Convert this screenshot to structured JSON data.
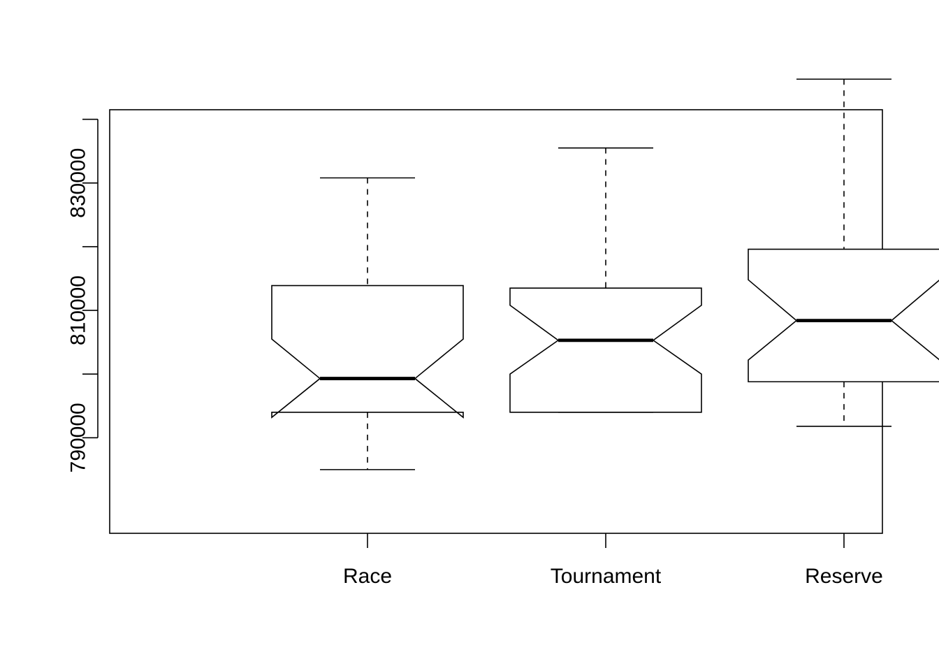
{
  "chart_data": {
    "type": "boxplot",
    "notched": true,
    "title": "",
    "xlabel": "",
    "ylabel": "",
    "categories": [
      "Race",
      "Tournament",
      "Reserve"
    ],
    "ylim": [
      775000,
      841500
    ],
    "y_ticks": [
      790000,
      800000,
      810000,
      820000,
      830000,
      840000
    ],
    "y_tick_labels": [
      "790000",
      "",
      "810000",
      "",
      "830000",
      ""
    ],
    "boxes": [
      {
        "label": "Race",
        "whisker_low": 785000,
        "q1": 794000,
        "median": 799300,
        "q3": 813900,
        "whisker_high": 830800,
        "notch_low": 793200,
        "notch_high": 805500
      },
      {
        "label": "Tournament",
        "whisker_low": 794000,
        "q1": 794000,
        "median": 805300,
        "q3": 813500,
        "whisker_high": 835500,
        "notch_low": 800000,
        "notch_high": 810800
      },
      {
        "label": "Reserve",
        "whisker_low": 791800,
        "q1": 798800,
        "median": 808400,
        "q3": 819600,
        "whisker_high": 846300,
        "notch_low": 802200,
        "notch_high": 814800
      }
    ],
    "grid": false,
    "legend": "none"
  }
}
